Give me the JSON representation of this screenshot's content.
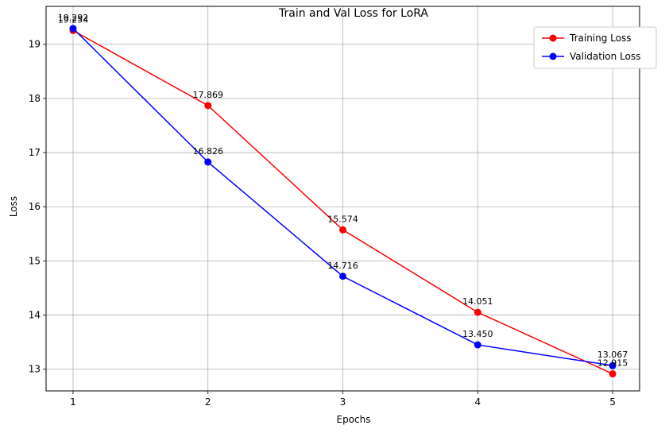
{
  "chart_data": {
    "type": "line",
    "title": "Train and Val Loss for LoRA",
    "xlabel": "Epochs",
    "ylabel": "Loss",
    "x": [
      1,
      2,
      3,
      4,
      5
    ],
    "xlim": [
      0.8,
      5.2
    ],
    "ylim": [
      12.6,
      19.7
    ],
    "xticks": [
      "1",
      "2",
      "3",
      "4",
      "5"
    ],
    "yticks": [
      "13",
      "14",
      "15",
      "16",
      "17",
      "18",
      "19"
    ],
    "grid": true,
    "legend_position": "top-right",
    "series": [
      {
        "name": "Training Loss",
        "color": "#ff0000",
        "values": [
          19.254,
          17.869,
          15.574,
          14.051,
          12.915
        ],
        "labels": [
          "19.254",
          "17.869",
          "15.574",
          "14.051",
          "12.915"
        ]
      },
      {
        "name": "Validation Loss",
        "color": "#0000ff",
        "values": [
          19.292,
          16.826,
          14.716,
          13.45,
          13.067
        ],
        "labels": [
          "19.292",
          "16.826",
          "14.716",
          "13.450",
          "13.067"
        ]
      }
    ]
  }
}
